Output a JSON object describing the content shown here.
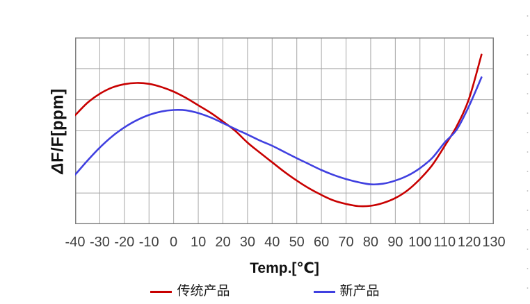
{
  "chart_data": {
    "type": "line",
    "title": "",
    "xlabel": "Temp.[℃]",
    "ylabel": "ΔF/F[ppm]",
    "xlim": [
      -40,
      130
    ],
    "x_ticks": [
      -40,
      -30,
      -20,
      -10,
      0,
      10,
      20,
      30,
      40,
      50,
      60,
      70,
      80,
      90,
      100,
      110,
      120,
      130
    ],
    "y_axis": {
      "tick_labels": [],
      "gridline_divisions": 6,
      "note": "y axis has no numeric labels; series y values given in grid divisions above the bottom gridline (0 = bottom line, 6 = top line)"
    },
    "grid": true,
    "legend_position": "bottom",
    "series": [
      {
        "name": "传统产品",
        "color": "#C80000",
        "points": [
          [
            -40,
            3.5
          ],
          [
            -35,
            3.9
          ],
          [
            -30,
            4.19
          ],
          [
            -25,
            4.39
          ],
          [
            -20,
            4.5
          ],
          [
            -15,
            4.54
          ],
          [
            -10,
            4.51
          ],
          [
            -5,
            4.41
          ],
          [
            0,
            4.26
          ],
          [
            5,
            4.06
          ],
          [
            10,
            3.82
          ],
          [
            15,
            3.58
          ],
          [
            20,
            3.3
          ],
          [
            25,
            3.0
          ],
          [
            30,
            2.62
          ],
          [
            35,
            2.3
          ],
          [
            40,
            1.99
          ],
          [
            45,
            1.68
          ],
          [
            50,
            1.4
          ],
          [
            55,
            1.15
          ],
          [
            60,
            0.94
          ],
          [
            65,
            0.76
          ],
          [
            70,
            0.65
          ],
          [
            75,
            0.58
          ],
          [
            80,
            0.59
          ],
          [
            85,
            0.68
          ],
          [
            90,
            0.84
          ],
          [
            95,
            1.09
          ],
          [
            100,
            1.45
          ],
          [
            105,
            1.9
          ],
          [
            110,
            2.51
          ],
          [
            115,
            3.16
          ],
          [
            120,
            4.05
          ],
          [
            125,
            5.45
          ]
        ]
      },
      {
        "name": "新产品",
        "color": "#4040E0",
        "points": [
          [
            -40,
            1.59
          ],
          [
            -35,
            2.04
          ],
          [
            -30,
            2.46
          ],
          [
            -25,
            2.82
          ],
          [
            -20,
            3.11
          ],
          [
            -15,
            3.34
          ],
          [
            -10,
            3.51
          ],
          [
            -5,
            3.62
          ],
          [
            0,
            3.67
          ],
          [
            5,
            3.66
          ],
          [
            10,
            3.57
          ],
          [
            15,
            3.43
          ],
          [
            20,
            3.25
          ],
          [
            25,
            3.06
          ],
          [
            30,
            2.88
          ],
          [
            35,
            2.69
          ],
          [
            40,
            2.52
          ],
          [
            45,
            2.32
          ],
          [
            50,
            2.12
          ],
          [
            55,
            1.93
          ],
          [
            60,
            1.74
          ],
          [
            65,
            1.58
          ],
          [
            70,
            1.45
          ],
          [
            75,
            1.35
          ],
          [
            80,
            1.28
          ],
          [
            85,
            1.3
          ],
          [
            90,
            1.4
          ],
          [
            95,
            1.56
          ],
          [
            100,
            1.8
          ],
          [
            105,
            2.13
          ],
          [
            110,
            2.62
          ],
          [
            115,
            3.05
          ],
          [
            120,
            3.81
          ],
          [
            125,
            4.72
          ]
        ]
      }
    ]
  },
  "y_axis_title": {
    "delta": "Δ",
    "rest": "F/F[ppm]"
  },
  "x_axis_title": "Temp.[℃]",
  "colors": {
    "background": "#FFFFFF",
    "grid": "#A6A6A6",
    "plot_border": "#808080",
    "tick_label": "#3F3F3F",
    "edge_dashes": "#C8C8C8"
  }
}
